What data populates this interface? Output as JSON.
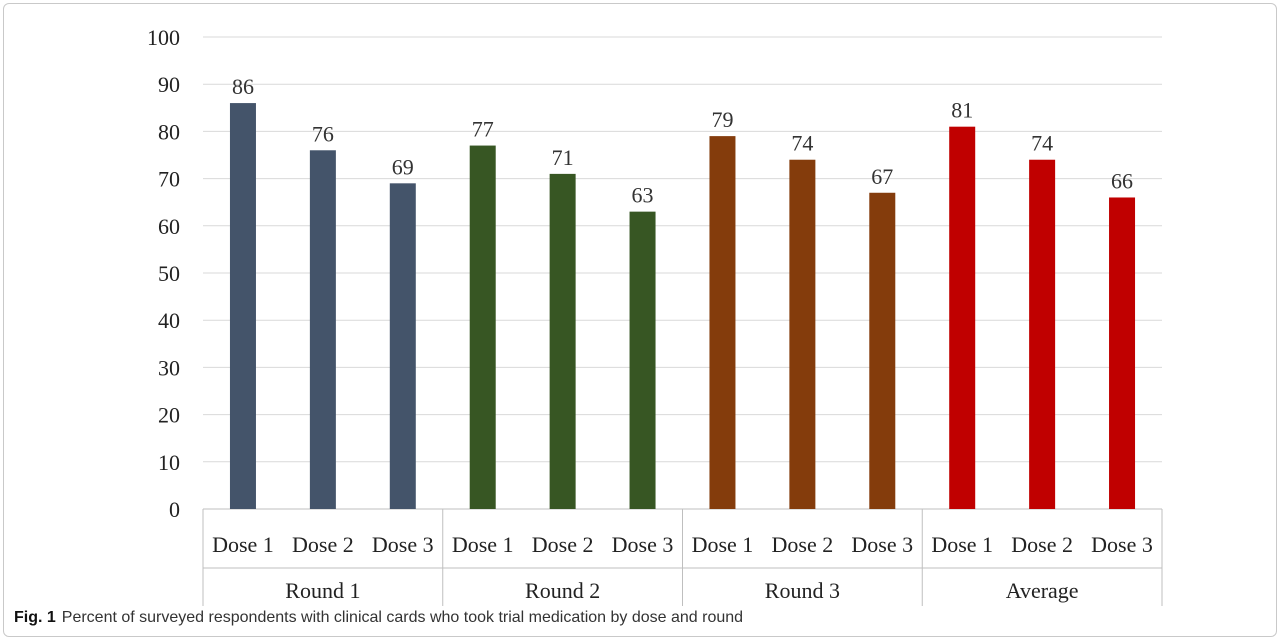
{
  "caption": {
    "label": "Fig. 1",
    "text": "Percent of surveyed respondents with clinical cards who took trial medication by dose and round"
  },
  "chart_data": {
    "type": "bar",
    "title": "",
    "xlabel": "",
    "ylabel": "",
    "ylim": [
      0,
      100
    ],
    "yticks": [
      0,
      10,
      20,
      30,
      40,
      50,
      60,
      70,
      80,
      90,
      100
    ],
    "grid": true,
    "legend": "none",
    "groups": [
      {
        "name": "Round 1",
        "color": "#44546a",
        "categories": [
          "Dose 1",
          "Dose 2",
          "Dose 3"
        ],
        "values": [
          86,
          76,
          69
        ]
      },
      {
        "name": "Round 2",
        "color": "#375623",
        "categories": [
          "Dose 1",
          "Dose 2",
          "Dose 3"
        ],
        "values": [
          77,
          71,
          63
        ]
      },
      {
        "name": "Round 3",
        "color": "#843c0c",
        "categories": [
          "Dose 1",
          "Dose 2",
          "Dose 3"
        ],
        "values": [
          79,
          74,
          67
        ]
      },
      {
        "name": "Average",
        "color": "#c00000",
        "categories": [
          "Dose 1",
          "Dose 2",
          "Dose 3"
        ],
        "values": [
          81,
          74,
          66
        ]
      }
    ]
  }
}
